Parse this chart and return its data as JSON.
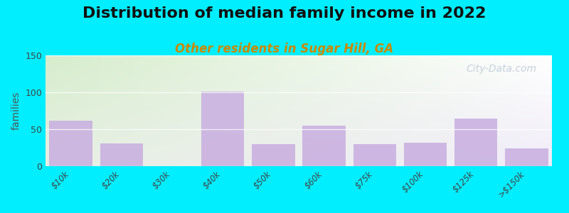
{
  "title": "Distribution of median family income in 2022",
  "subtitle": "Other residents in Sugar Hill, GA",
  "ylabel": "families",
  "categories": [
    "$10k",
    "$20k",
    "$30k",
    "$40k",
    "$50k",
    "$60k",
    "$75k",
    "$100k",
    "$125k",
    ">$150k"
  ],
  "values": [
    62,
    31,
    0,
    101,
    30,
    55,
    30,
    32,
    64,
    24
  ],
  "bar_color": "#c8aee0",
  "ylim": [
    0,
    150
  ],
  "yticks": [
    0,
    50,
    100,
    150
  ],
  "background_outer": "#00eeff",
  "grad_top_left": "#d6edcc",
  "grad_bottom_right": "#f0ecf8",
  "title_fontsize": 16,
  "subtitle_fontsize": 12,
  "subtitle_color": "#cc8800",
  "watermark": "City-Data.com",
  "watermark_color": "#aabbcc"
}
